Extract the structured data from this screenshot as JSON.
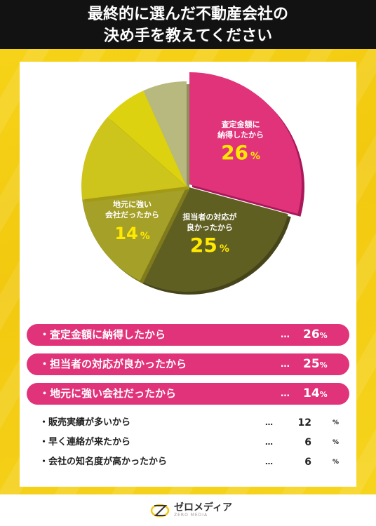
{
  "title": {
    "line1": "最終的に選んだ不動産会社の",
    "line2": "決め手を教えてください"
  },
  "chart_data": {
    "type": "pie",
    "title": "",
    "slices": [
      {
        "label": "査定金額に納得したから",
        "value": 26,
        "color": "#e0337a",
        "shadow": "#a8185a"
      },
      {
        "label": "担当者の対応が良かったから",
        "value": 25,
        "color": "#605f22",
        "shadow": "#46451a"
      },
      {
        "label": "地元に強い会社だったから",
        "value": 14,
        "color": "#a5a028",
        "shadow": "#7f7b1c"
      },
      {
        "label": "販売実績が多いから",
        "value": 12,
        "color": "#cdc41c",
        "shadow": "#a29a14"
      },
      {
        "label": "早く連絡が来たから",
        "value": 6,
        "color": "#ddd20f",
        "shadow": "#b0a60a"
      },
      {
        "label": "会社の知名度が高かったから",
        "value": 6,
        "color": "#b8b97f",
        "shadow": "#8e8f5e"
      }
    ],
    "slice_labels": [
      {
        "line1": "査定金額に",
        "line2": "納得したから",
        "pct": "26",
        "unit": "%"
      },
      {
        "line1": "担当者の対応が",
        "line2": "良かったから",
        "pct": "25",
        "unit": "%"
      },
      {
        "line1": "地元に強い",
        "line2": "会社だったから",
        "pct": "14",
        "unit": "%"
      }
    ]
  },
  "ranking": {
    "highlighted": [
      {
        "label": "・査定金額に納得したから",
        "dots": "…",
        "value": "26",
        "unit": "%"
      },
      {
        "label": "・担当者の対応が良かったから",
        "dots": "…",
        "value": "25",
        "unit": "%"
      },
      {
        "label": "・地元に強い会社だったから",
        "dots": "…",
        "value": "14",
        "unit": "%"
      }
    ],
    "plain": [
      {
        "label": "・販売実績が多いから",
        "dots": "…",
        "value": "12",
        "unit": "%"
      },
      {
        "label": "・早く連絡が来たから",
        "dots": "…",
        "value": "6",
        "unit": "%"
      },
      {
        "label": "・会社の知名度が高かったから",
        "dots": "…",
        "value": "6",
        "unit": "%"
      }
    ]
  },
  "footer": {
    "logo_text": "ゼロメディア",
    "logo_sub": "ZERO MEDIA"
  }
}
